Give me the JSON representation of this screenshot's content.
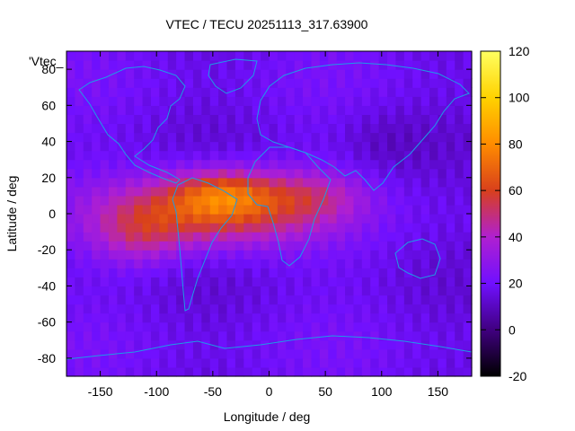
{
  "chart_data": {
    "type": "heatmap",
    "title": "VTEC / TECU 20251113_317.63900",
    "xlabel": "Longitude / deg",
    "ylabel": "Latitude / deg",
    "xlim": [
      -180,
      180
    ],
    "ylim": [
      -90,
      90
    ],
    "xticks": [
      -150,
      -100,
      -50,
      0,
      50,
      100,
      150
    ],
    "yticks": [
      -80,
      -60,
      -40,
      -20,
      0,
      20,
      40,
      60,
      80
    ],
    "colorbar": {
      "range": [
        -20,
        120
      ],
      "ticks": [
        -20,
        0,
        20,
        40,
        60,
        80,
        100,
        120
      ],
      "palette": [
        "#000000",
        "#400080",
        "#7010ff",
        "#b020d0",
        "#d8401c",
        "#ff8c00",
        "#ffd200",
        "#ffff60"
      ]
    },
    "series_label": "'Vtec_",
    "grid": false,
    "legend": "top-left",
    "overlay": "coastlines",
    "overlay_color": "#1e9be6",
    "field_description": [
      {
        "region": "equatorial band Americas to Africa (lon -160 to 70, lat -30 to 25)",
        "vtec_approx": 60
      },
      {
        "region": "peak over South America and Atlantic (lon -90 to 10, lat -10 to 25)",
        "vtec_approx": 85
      },
      {
        "region": "mid and high latitudes",
        "vtec_approx": 18
      },
      {
        "region": "Asia-Pacific night side",
        "vtec_approx": 15
      }
    ]
  }
}
